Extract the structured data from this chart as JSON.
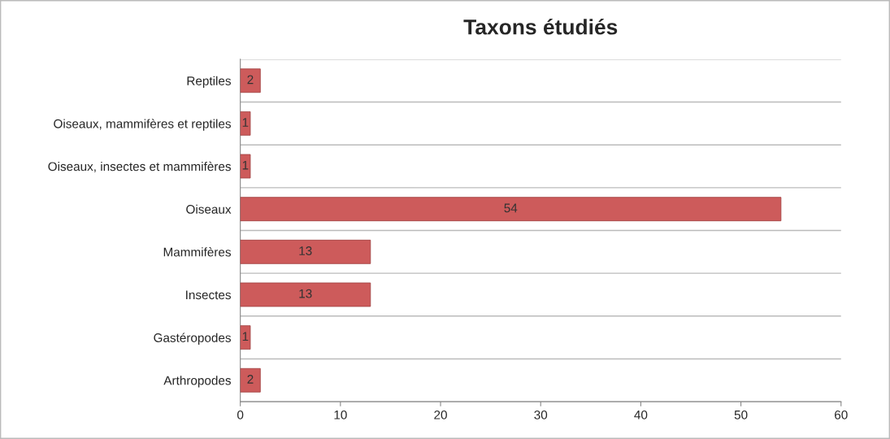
{
  "chart_data": {
    "type": "bar",
    "orientation": "horizontal",
    "title": "Taxons étudiés",
    "categories": [
      "Reptiles",
      "Oiseaux, mammifères et reptiles",
      "Oiseaux, insectes et mammifères",
      "Oiseaux",
      "Mammifères",
      "Insectes",
      "Gastéropodes",
      "Arthropodes"
    ],
    "values": [
      2,
      1,
      1,
      54,
      13,
      13,
      1,
      2
    ],
    "color": "#cd5b5b",
    "xlim": [
      0,
      60
    ],
    "xticks": [
      0,
      10,
      20,
      30,
      40,
      50,
      60
    ],
    "grid": "y",
    "data_labels": true
  }
}
